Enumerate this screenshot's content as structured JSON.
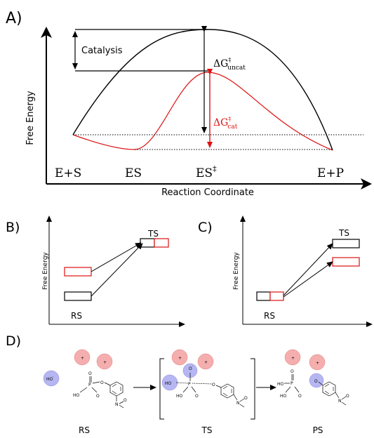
{
  "panels": {
    "a": {
      "letter": "A)",
      "catalysis_label": "Catalysis",
      "delta_uncat": {
        "main": "ΔG",
        "sup": "‡",
        "sub": "uncat"
      },
      "delta_cat": {
        "main": "ΔG",
        "sup": "‡",
        "sub": "cat"
      },
      "x_axis_label": "Reaction Coordinate",
      "y_axis_label": "Free Energy",
      "state_labels": {
        "es_plus": "E+S",
        "es": "ES",
        "es_ts": "ES",
        "es_ts_sup": "‡",
        "ep": "E+P"
      }
    },
    "b": {
      "letter": "B)",
      "y_axis_label": "Free Energy",
      "ts_label": "TS",
      "rs_label": "RS"
    },
    "c": {
      "letter": "C)",
      "y_axis_label": "Free Energy",
      "ts_label": "TS",
      "rs_label": "RS"
    },
    "d": {
      "letter": "D)",
      "state_labels": {
        "rs": "RS",
        "ts": "TS",
        "ps": "PS"
      },
      "atoms": {
        "hydroxide": "HO",
        "charge_minus": "-",
        "charge_plus": "+",
        "phosphorus": "P",
        "oxygen": "O",
        "ho": "HO",
        "nitrogen": "N"
      }
    }
  },
  "colors": {
    "uncatalyzed": "#000000",
    "catalyzed": "#dd1111",
    "cation": "#f29a9a",
    "anion": "#a9a9f0"
  }
}
